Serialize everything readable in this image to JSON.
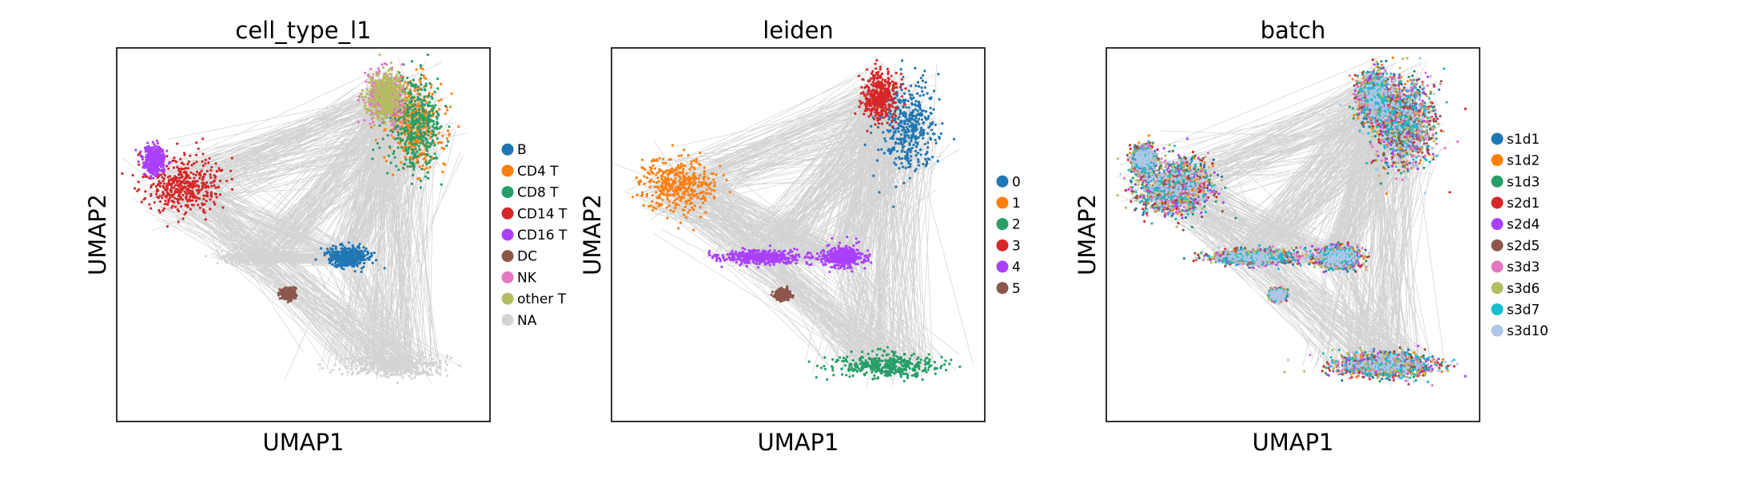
{
  "chart_data": [
    {
      "type": "scatter",
      "title": "cell_type_l1",
      "xlabel": "UMAP1",
      "ylabel": "UMAP2",
      "ticks": "none",
      "grid": false,
      "legend_position": "right",
      "series": [
        {
          "name": "B",
          "color": "#1f77b4"
        },
        {
          "name": "CD4 T",
          "color": "#ff7f0e"
        },
        {
          "name": "CD8 T",
          "color": "#279e68"
        },
        {
          "name": "CD14 T",
          "color": "#d62728"
        },
        {
          "name": "CD16 T",
          "color": "#aa40fc"
        },
        {
          "name": "DC",
          "color": "#8c564b"
        },
        {
          "name": "NK",
          "color": "#e377c2"
        },
        {
          "name": "other T",
          "color": "#b5bd61"
        },
        {
          "name": "NA",
          "color": "#d3d3d3"
        }
      ]
    },
    {
      "type": "scatter",
      "title": "leiden",
      "xlabel": "UMAP1",
      "ylabel": "UMAP2",
      "ticks": "none",
      "grid": false,
      "legend_position": "right",
      "series": [
        {
          "name": "0",
          "color": "#1f77b4"
        },
        {
          "name": "1",
          "color": "#ff7f0e"
        },
        {
          "name": "2",
          "color": "#279e68"
        },
        {
          "name": "3",
          "color": "#d62728"
        },
        {
          "name": "4",
          "color": "#aa40fc"
        },
        {
          "name": "5",
          "color": "#8c564b"
        }
      ]
    },
    {
      "type": "scatter",
      "title": "batch",
      "xlabel": "UMAP1",
      "ylabel": "UMAP2",
      "ticks": "none",
      "grid": false,
      "legend_position": "right",
      "series": [
        {
          "name": "s1d1",
          "color": "#1f77b4"
        },
        {
          "name": "s1d2",
          "color": "#ff7f0e"
        },
        {
          "name": "s1d3",
          "color": "#279e68"
        },
        {
          "name": "s2d1",
          "color": "#d62728"
        },
        {
          "name": "s2d4",
          "color": "#aa40fc"
        },
        {
          "name": "s2d5",
          "color": "#8c564b"
        },
        {
          "name": "s3d3",
          "color": "#e377c2"
        },
        {
          "name": "s3d6",
          "color": "#b5bd61"
        },
        {
          "name": "s3d7",
          "color": "#17becf"
        },
        {
          "name": "s3d10",
          "color": "#aec7e8"
        }
      ]
    }
  ]
}
